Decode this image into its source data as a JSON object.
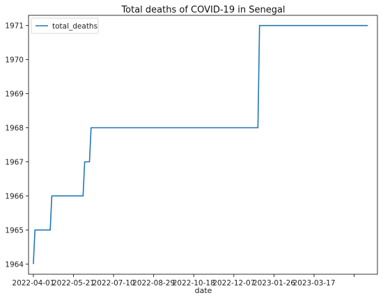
{
  "chart_data": {
    "type": "line",
    "title": "Total deaths of COVID-19 in Senegal",
    "xlabel": "date",
    "ylabel": "",
    "legend_position": "top-left",
    "grid": false,
    "ylim": [
      1963.7,
      1971.3
    ],
    "xlim": [
      "2022-03-26",
      "2023-06-04"
    ],
    "series": [
      {
        "name": "total_deaths",
        "color": "#1f77b4",
        "step": true,
        "x": [
          "2022-04-01",
          "2022-04-03",
          "2022-04-22",
          "2022-04-24",
          "2022-06-02",
          "2022-06-04",
          "2022-06-10",
          "2022-06-12",
          "2023-01-06",
          "2023-01-08",
          "2023-05-23"
        ],
        "y": [
          1964,
          1965,
          1965,
          1966,
          1966,
          1967,
          1967,
          1968,
          1968,
          1971,
          1971
        ]
      }
    ],
    "x_ticks": [
      {
        "date": "2022-04-01",
        "label": "2022-04-01"
      },
      {
        "date": "2022-05-21",
        "label": "2022-05-21"
      },
      {
        "date": "2022-07-10",
        "label": "2022-07-10"
      },
      {
        "date": "2022-08-29",
        "label": "2022-08-29"
      },
      {
        "date": "2022-10-18",
        "label": "2022-10-18"
      },
      {
        "date": "2022-12-07",
        "label": "2022-12-07"
      },
      {
        "date": "2023-01-26",
        "label": "2023-01-26"
      },
      {
        "date": "2023-03-17",
        "label": "2023-03-17"
      },
      {
        "date": "2023-05-06",
        "label": ""
      }
    ],
    "y_ticks": [
      1964,
      1965,
      1966,
      1967,
      1968,
      1969,
      1970,
      1971
    ]
  }
}
